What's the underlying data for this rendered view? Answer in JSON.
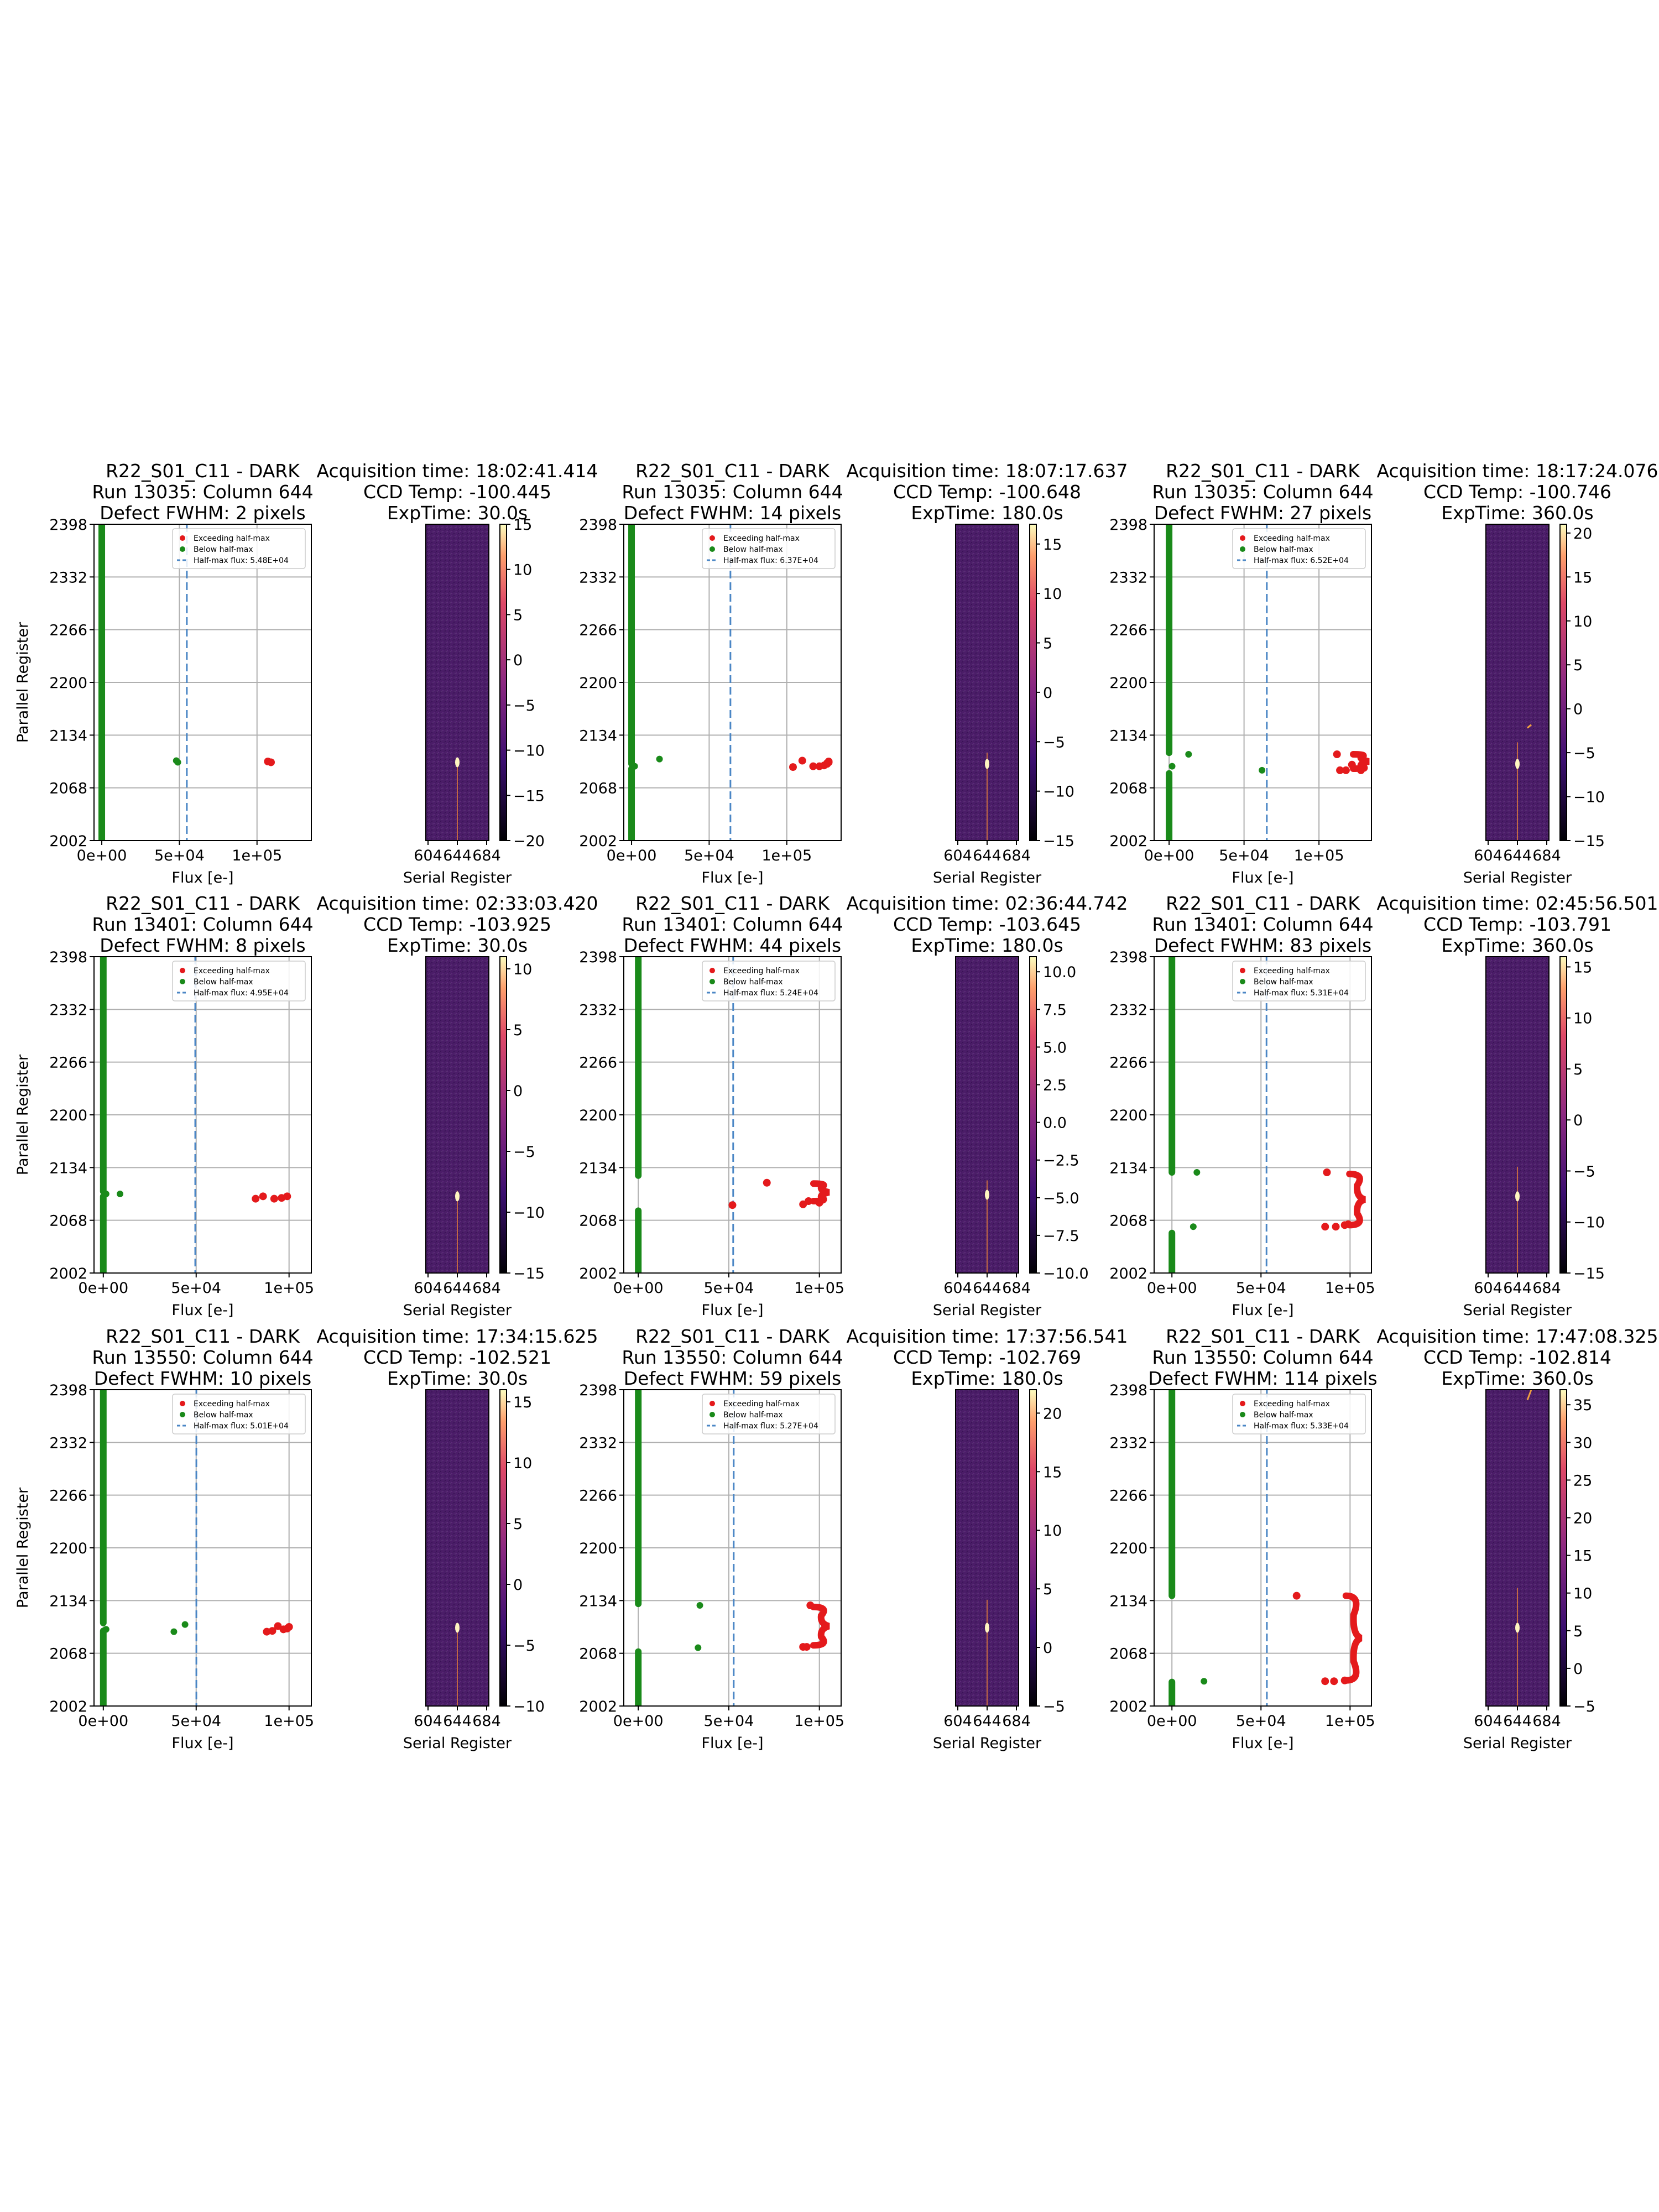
{
  "figure": {
    "colors": {
      "exceed": "#e41a1c",
      "below": "#1a8a1a",
      "halfmax_line": "#4a86c5",
      "grid": "#b0b0b0",
      "image_bg": "#4b1d68"
    },
    "legend_labels": [
      "Exceeding half-max",
      "Below half-max"
    ],
    "scatter_xlabel": "Flux [e-]",
    "scatter_ylabel": "Parallel Register",
    "image_xlabel": "Serial Register",
    "scatter_yticks": [
      "2398",
      "2332",
      "2266",
      "2200",
      "2134",
      "2068",
      "2002"
    ],
    "image_xticks": [
      "604",
      "644",
      "684"
    ]
  },
  "chart_data": [
    {
      "type": "scatter",
      "title": [
        "R22_S01_C11 - DARK",
        "Run 13035: Column 644",
        "Defect FWHM: 2 pixels"
      ],
      "halfmax_label": "Half-max flux: 5.48E+04",
      "halfmax_flux": 54800,
      "xlim": [
        -5000,
        135000
      ],
      "ylim": [
        2002,
        2398
      ],
      "xticks": [
        {
          "v": 0,
          "label": "0e+00"
        },
        {
          "v": 50000,
          "label": "5e+04"
        },
        {
          "v": 100000,
          "label": "1e+05"
        }
      ],
      "green_segments": [
        [
          2002,
          2398
        ]
      ],
      "green_points": [
        [
          48000,
          2102
        ],
        [
          49000,
          2100
        ]
      ],
      "red_points": [
        [
          107000,
          2101
        ],
        [
          109000,
          2100
        ]
      ],
      "brace": null,
      "image": {
        "header": [
          "Acquisition time: 18:02:41.414",
          "CCD Temp: -100.445",
          "ExpTime: 30.0s"
        ],
        "cbar_ticks": [
          {
            "v": 15,
            "label": "15"
          },
          {
            "v": 10,
            "label": "10"
          },
          {
            "v": 5,
            "label": "5"
          },
          {
            "v": 0,
            "label": "0"
          },
          {
            "v": -5,
            "label": "−5"
          },
          {
            "v": -10,
            "label": "−10"
          },
          {
            "v": -15,
            "label": "−15"
          },
          {
            "v": -20,
            "label": "−20"
          }
        ],
        "cbar_range": [
          -20,
          15
        ],
        "spot_param": 2100,
        "streak_extent": [
          2002,
          2095
        ],
        "streak2": null
      }
    },
    {
      "type": "scatter",
      "title": [
        "R22_S01_C11 - DARK",
        "Run 13035: Column 644",
        "Defect FWHM: 14 pixels"
      ],
      "halfmax_label": "Half-max flux: 6.37E+04",
      "halfmax_flux": 63700,
      "xlim": [
        -5000,
        135000
      ],
      "ylim": [
        2002,
        2398
      ],
      "xticks": [
        {
          "v": 0,
          "label": "0e+00"
        },
        {
          "v": 50000,
          "label": "5e+04"
        },
        {
          "v": 100000,
          "label": "1e+05"
        }
      ],
      "green_segments": [
        [
          2002,
          2092
        ],
        [
          2098,
          2398
        ]
      ],
      "green_points": [
        [
          2000,
          2095
        ],
        [
          18000,
          2104
        ]
      ],
      "red_points": [
        [
          104000,
          2094
        ],
        [
          110000,
          2102
        ],
        [
          117000,
          2095
        ],
        [
          121000,
          2095
        ],
        [
          124000,
          2096
        ],
        [
          126000,
          2098
        ],
        [
          127000,
          2100
        ],
        [
          127000,
          2101
        ],
        [
          126000,
          2099
        ]
      ],
      "brace": null,
      "image": {
        "header": [
          "Acquisition time: 18:07:17.637",
          "CCD Temp: -100.648",
          "ExpTime: 180.0s"
        ],
        "cbar_ticks": [
          {
            "v": 15,
            "label": "15"
          },
          {
            "v": 10,
            "label": "10"
          },
          {
            "v": 5,
            "label": "5"
          },
          {
            "v": 0,
            "label": "0"
          },
          {
            "v": -5,
            "label": "−5"
          },
          {
            "v": -10,
            "label": "−10"
          },
          {
            "v": -15,
            "label": "−15"
          }
        ],
        "cbar_range": [
          -15,
          17
        ],
        "spot_param": 2098,
        "streak_extent": [
          2002,
          2112
        ],
        "streak2": null
      }
    },
    {
      "type": "scatter",
      "title": [
        "R22_S01_C11 - DARK",
        "Run 13035: Column 644",
        "Defect FWHM: 27 pixels"
      ],
      "halfmax_label": "Half-max flux: 6.52E+04",
      "halfmax_flux": 65200,
      "xlim": [
        -10000,
        135000
      ],
      "ylim": [
        2002,
        2398
      ],
      "xticks": [
        {
          "v": 0,
          "label": "0e+00"
        },
        {
          "v": 50000,
          "label": "5e+04"
        },
        {
          "v": 100000,
          "label": "1e+05"
        }
      ],
      "green_segments": [
        [
          2002,
          2086
        ],
        [
          2112,
          2398
        ]
      ],
      "green_points": [
        [
          2000,
          2095
        ],
        [
          13000,
          2110
        ],
        [
          62000,
          2090
        ]
      ],
      "red_points": [
        [
          112000,
          2110
        ],
        [
          114000,
          2090
        ],
        [
          118000,
          2090
        ],
        [
          122000,
          2097
        ],
        [
          128000,
          2090
        ],
        [
          130000,
          2093
        ]
      ],
      "brace": {
        "x": 128000,
        "y0": 2092,
        "y1": 2110
      },
      "image": {
        "header": [
          "Acquisition time: 18:17:24.076",
          "CCD Temp: -100.746",
          "ExpTime: 360.0s"
        ],
        "cbar_ticks": [
          {
            "v": 20,
            "label": "20"
          },
          {
            "v": 15,
            "label": "15"
          },
          {
            "v": 10,
            "label": "10"
          },
          {
            "v": 5,
            "label": "5"
          },
          {
            "v": 0,
            "label": "0"
          },
          {
            "v": -5,
            "label": "−5"
          },
          {
            "v": -10,
            "label": "−10"
          },
          {
            "v": -15,
            "label": "−15"
          }
        ],
        "cbar_range": [
          -15,
          21
        ],
        "spot_param": 2098,
        "streak_extent": [
          2002,
          2125
        ],
        "streak2": [
          2143,
          2147
        ]
      }
    },
    {
      "type": "scatter",
      "title": [
        "R22_S01_C11 - DARK",
        "Run 13401: Column 644",
        "Defect FWHM: 8 pixels"
      ],
      "halfmax_label": "Half-max flux: 4.95E+04",
      "halfmax_flux": 49500,
      "xlim": [
        -5000,
        112000
      ],
      "ylim": [
        2002,
        2398
      ],
      "xticks": [
        {
          "v": 0,
          "label": "0e+00"
        },
        {
          "v": 50000,
          "label": "5e+04"
        },
        {
          "v": 100000,
          "label": "1e+05"
        }
      ],
      "green_segments": [
        [
          2002,
          2098
        ],
        [
          2104,
          2398
        ]
      ],
      "green_points": [
        [
          1500,
          2101
        ],
        [
          9000,
          2101
        ]
      ],
      "red_points": [
        [
          82000,
          2095
        ],
        [
          86000,
          2098
        ],
        [
          92000,
          2095
        ],
        [
          96000,
          2096
        ],
        [
          99000,
          2098
        ]
      ],
      "brace": null,
      "image": {
        "header": [
          "Acquisition time: 02:33:03.420",
          "CCD Temp: -103.925",
          "ExpTime: 30.0s"
        ],
        "cbar_ticks": [
          {
            "v": 10,
            "label": "10"
          },
          {
            "v": 5,
            "label": "5"
          },
          {
            "v": 0,
            "label": "0"
          },
          {
            "v": -5,
            "label": "−5"
          },
          {
            "v": -10,
            "label": "−10"
          },
          {
            "v": -15,
            "label": "−15"
          }
        ],
        "cbar_range": [
          -15,
          11
        ],
        "spot_param": 2098,
        "streak_extent": [
          2002,
          2105
        ],
        "streak2": null
      }
    },
    {
      "type": "scatter",
      "title": [
        "R22_S01_C11 - DARK",
        "Run 13401: Column 644",
        "Defect FWHM: 44 pixels"
      ],
      "halfmax_label": "Half-max flux: 5.24E+04",
      "halfmax_flux": 52400,
      "xlim": [
        -8000,
        112000
      ],
      "ylim": [
        2002,
        2398
      ],
      "xticks": [
        {
          "v": 0,
          "label": "0e+00"
        },
        {
          "v": 50000,
          "label": "5e+04"
        },
        {
          "v": 100000,
          "label": "1e+05"
        }
      ],
      "green_segments": [
        [
          2002,
          2080
        ],
        [
          2124,
          2398
        ]
      ],
      "green_points": [],
      "red_points": [
        [
          52000,
          2087
        ],
        [
          71000,
          2115
        ],
        [
          91000,
          2088
        ],
        [
          94000,
          2092
        ],
        [
          100000,
          2090
        ]
      ],
      "brace": {
        "x": 101000,
        "y0": 2092,
        "y1": 2114
      },
      "image": {
        "header": [
          "Acquisition time: 02:36:44.742",
          "CCD Temp: -103.645",
          "ExpTime: 180.0s"
        ],
        "cbar_ticks": [
          {
            "v": 10.0,
            "label": "10.0"
          },
          {
            "v": 7.5,
            "label": "7.5"
          },
          {
            "v": 5.0,
            "label": "5.0"
          },
          {
            "v": 2.5,
            "label": "2.5"
          },
          {
            "v": 0.0,
            "label": "0.0"
          },
          {
            "v": -2.5,
            "label": "−2.5"
          },
          {
            "v": -5.0,
            "label": "−5.0"
          },
          {
            "v": -7.5,
            "label": "−7.5"
          },
          {
            "v": -10.0,
            "label": "−10.0"
          }
        ],
        "cbar_range": [
          -10,
          11
        ],
        "spot_param": 2100,
        "streak_extent": [
          2002,
          2118
        ],
        "streak2": null
      }
    },
    {
      "type": "scatter",
      "title": [
        "R22_S01_C11 - DARK",
        "Run 13401: Column 644",
        "Defect FWHM: 83 pixels"
      ],
      "halfmax_label": "Half-max flux: 5.31E+04",
      "halfmax_flux": 53100,
      "xlim": [
        -10000,
        112000
      ],
      "ylim": [
        2002,
        2398
      ],
      "xticks": [
        {
          "v": 0,
          "label": "0e+00"
        },
        {
          "v": 50000,
          "label": "5e+04"
        },
        {
          "v": 100000,
          "label": "1e+05"
        }
      ],
      "green_segments": [
        [
          2002,
          2052
        ],
        [
          2128,
          2398
        ]
      ],
      "green_points": [
        [
          14000,
          2128
        ],
        [
          12000,
          2060
        ]
      ],
      "red_points": [
        [
          87000,
          2128
        ],
        [
          86000,
          2060
        ],
        [
          92000,
          2060
        ],
        [
          97000,
          2062
        ],
        [
          99000,
          2063
        ]
      ],
      "brace": {
        "x": 104000,
        "y0": 2062,
        "y1": 2126
      },
      "image": {
        "header": [
          "Acquisition time: 02:45:56.501",
          "CCD Temp: -103.791",
          "ExpTime: 360.0s"
        ],
        "cbar_ticks": [
          {
            "v": 15,
            "label": "15"
          },
          {
            "v": 10,
            "label": "10"
          },
          {
            "v": 5,
            "label": "5"
          },
          {
            "v": 0,
            "label": "0"
          },
          {
            "v": -5,
            "label": "−5"
          },
          {
            "v": -10,
            "label": "−10"
          },
          {
            "v": -15,
            "label": "−15"
          }
        ],
        "cbar_range": [
          -15,
          16
        ],
        "spot_param": 2098,
        "streak_extent": [
          2002,
          2135
        ],
        "streak2": null
      }
    },
    {
      "type": "scatter",
      "title": [
        "R22_S01_C11 - DARK",
        "Run 13550: Column 644",
        "Defect FWHM: 10 pixels"
      ],
      "halfmax_label": "Half-max flux: 5.01E+04",
      "halfmax_flux": 50100,
      "xlim": [
        -5000,
        112000
      ],
      "ylim": [
        2002,
        2398
      ],
      "xticks": [
        {
          "v": 0,
          "label": "0e+00"
        },
        {
          "v": 50000,
          "label": "5e+04"
        },
        {
          "v": 100000,
          "label": "1e+05"
        }
      ],
      "green_segments": [
        [
          2002,
          2096
        ],
        [
          2106,
          2398
        ]
      ],
      "green_points": [
        [
          1500,
          2098
        ],
        [
          38000,
          2095
        ],
        [
          44000,
          2104
        ]
      ],
      "red_points": [
        [
          88000,
          2095
        ],
        [
          91000,
          2096
        ],
        [
          94000,
          2102
        ],
        [
          97000,
          2098
        ],
        [
          99000,
          2099
        ],
        [
          100000,
          2101
        ]
      ],
      "brace": null,
      "image": {
        "header": [
          "Acquisition time: 17:34:15.625",
          "CCD Temp: -102.521",
          "ExpTime: 30.0s"
        ],
        "cbar_ticks": [
          {
            "v": 15,
            "label": "15"
          },
          {
            "v": 10,
            "label": "10"
          },
          {
            "v": 5,
            "label": "5"
          },
          {
            "v": 0,
            "label": "0"
          },
          {
            "v": -5,
            "label": "−5"
          },
          {
            "v": -10,
            "label": "−10"
          }
        ],
        "cbar_range": [
          -10,
          16
        ],
        "spot_param": 2100,
        "streak_extent": [
          2002,
          2105
        ],
        "streak2": null
      }
    },
    {
      "type": "scatter",
      "title": [
        "R22_S01_C11 - DARK",
        "Run 13550: Column 644",
        "Defect FWHM: 59 pixels"
      ],
      "halfmax_label": "Half-max flux: 5.27E+04",
      "halfmax_flux": 52700,
      "xlim": [
        -8000,
        112000
      ],
      "ylim": [
        2002,
        2398
      ],
      "xticks": [
        {
          "v": 0,
          "label": "0e+00"
        },
        {
          "v": 50000,
          "label": "5e+04"
        },
        {
          "v": 100000,
          "label": "1e+05"
        }
      ],
      "green_segments": [
        [
          2002,
          2070
        ],
        [
          2130,
          2398
        ]
      ],
      "green_points": [
        [
          34000,
          2128
        ],
        [
          33000,
          2075
        ]
      ],
      "red_points": [
        [
          91000,
          2076
        ],
        [
          93000,
          2076
        ],
        [
          95000,
          2128
        ]
      ],
      "brace": {
        "x": 101000,
        "y0": 2078,
        "y1": 2126
      },
      "image": {
        "header": [
          "Acquisition time: 17:37:56.541",
          "CCD Temp: -102.769",
          "ExpTime: 180.0s"
        ],
        "cbar_ticks": [
          {
            "v": 20,
            "label": "20"
          },
          {
            "v": 15,
            "label": "15"
          },
          {
            "v": 10,
            "label": "10"
          },
          {
            "v": 5,
            "label": "5"
          },
          {
            "v": 0,
            "label": "0"
          },
          {
            "v": -5,
            "label": "−5"
          }
        ],
        "cbar_range": [
          -5,
          22
        ],
        "spot_param": 2100,
        "streak_extent": [
          2002,
          2135
        ],
        "streak2": null
      }
    },
    {
      "type": "scatter",
      "title": [
        "R22_S01_C11 - DARK",
        "Run 13550: Column 644",
        "Defect FWHM: 114 pixels"
      ],
      "halfmax_label": "Half-max flux: 5.33E+04",
      "halfmax_flux": 53300,
      "xlim": [
        -10000,
        112000
      ],
      "ylim": [
        2002,
        2398
      ],
      "xticks": [
        {
          "v": 0,
          "label": "0e+00"
        },
        {
          "v": 50000,
          "label": "5e+04"
        },
        {
          "v": 100000,
          "label": "1e+05"
        }
      ],
      "green_segments": [
        [
          2002,
          2032
        ],
        [
          2140,
          2398
        ]
      ],
      "green_points": [
        [
          18000,
          2033
        ]
      ],
      "red_points": [
        [
          70000,
          2140
        ],
        [
          86000,
          2033
        ],
        [
          91000,
          2033
        ],
        [
          97000,
          2034
        ]
      ],
      "brace": {
        "x": 102000,
        "y0": 2034,
        "y1": 2140
      },
      "image": {
        "header": [
          "Acquisition time: 17:47:08.325",
          "CCD Temp: -102.814",
          "ExpTime: 360.0s"
        ],
        "cbar_ticks": [
          {
            "v": 35,
            "label": "35"
          },
          {
            "v": 30,
            "label": "30"
          },
          {
            "v": 25,
            "label": "25"
          },
          {
            "v": 20,
            "label": "20"
          },
          {
            "v": 15,
            "label": "15"
          },
          {
            "v": 10,
            "label": "10"
          },
          {
            "v": 5,
            "label": "5"
          },
          {
            "v": 0,
            "label": "0"
          },
          {
            "v": -5,
            "label": "−5"
          }
        ],
        "cbar_range": [
          -5,
          37
        ],
        "spot_param": 2100,
        "streak_extent": [
          2002,
          2150
        ],
        "streak2": [
          2385,
          2398
        ]
      }
    }
  ]
}
